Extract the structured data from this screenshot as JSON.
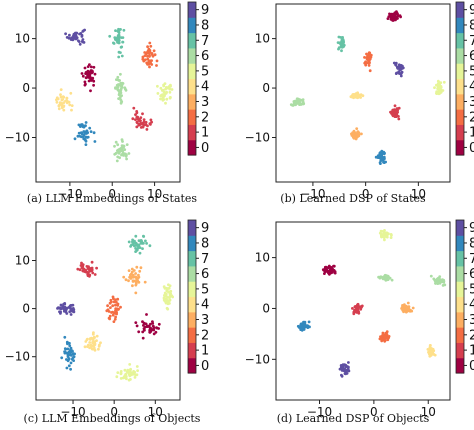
{
  "figure": {
    "captions": [
      "(a) LLM Embeddings of States",
      "(b) Learned DSP of States",
      "(c) LLM Embeddings of Objects",
      "(d) Learned DSP of Objects"
    ]
  },
  "colormap": {
    "name": "Spectral",
    "class_colors": [
      "#9e0142",
      "#d53e4f",
      "#f46d43",
      "#fdae61",
      "#fee08b",
      "#e6f598",
      "#abdda4",
      "#66c2a5",
      "#3288bd",
      "#5e4fa2"
    ]
  },
  "chart_data": [
    {
      "type": "scatter",
      "title": "",
      "xlabel": "",
      "ylabel": "",
      "xlim": [
        -18,
        16
      ],
      "ylim": [
        -19,
        17
      ],
      "xticks": [
        -10,
        0,
        10
      ],
      "yticks": [
        -10,
        0,
        10
      ],
      "grid": false,
      "colorbar": {
        "ticks": [
          0,
          1,
          2,
          3,
          4,
          5,
          6,
          7,
          8,
          9
        ],
        "placement": "right"
      },
      "clusters": [
        {
          "label": 9,
          "cx": -8.5,
          "cy": 10.5,
          "spread": [
            1.0,
            0.8
          ],
          "points": 40
        },
        {
          "label": 7,
          "cx": 1.5,
          "cy": 10.0,
          "spread": [
            0.6,
            1.3
          ],
          "points": 40
        },
        {
          "label": 2,
          "cx": 8.5,
          "cy": 6.5,
          "spread": [
            0.8,
            1.2
          ],
          "points": 40
        },
        {
          "label": 0,
          "cx": -5.5,
          "cy": 2.5,
          "spread": [
            0.8,
            1.0
          ],
          "points": 40
        },
        {
          "label": 6,
          "cx": 2.0,
          "cy": 0.0,
          "spread": [
            0.6,
            1.2
          ],
          "points": 40
        },
        {
          "label": 5,
          "cx": 12.5,
          "cy": -1.0,
          "spread": [
            1.0,
            0.9
          ],
          "points": 40
        },
        {
          "label": 4,
          "cx": -11.5,
          "cy": -3.0,
          "spread": [
            1.0,
            0.9
          ],
          "points": 40
        },
        {
          "label": 1,
          "cx": 7.0,
          "cy": -6.5,
          "spread": [
            1.0,
            0.9
          ],
          "points": 40
        },
        {
          "label": 8,
          "cx": -6.5,
          "cy": -9.0,
          "spread": [
            0.8,
            1.0
          ],
          "points": 40
        },
        {
          "label": 6,
          "cx": 2.0,
          "cy": -13.0,
          "spread": [
            0.9,
            1.0
          ],
          "points": 40
        }
      ]
    },
    {
      "type": "scatter",
      "title": "",
      "xlabel": "",
      "ylabel": "",
      "xlim": [
        -17,
        16
      ],
      "ylim": [
        -19,
        17
      ],
      "xticks": [
        -10,
        0,
        10
      ],
      "yticks": [
        -10,
        0,
        10
      ],
      "grid": false,
      "colorbar": {
        "ticks": [
          0,
          1,
          2,
          3,
          4,
          5,
          6,
          7,
          8,
          9
        ],
        "placement": "right"
      },
      "clusters": [
        {
          "label": 0,
          "cx": 5.5,
          "cy": 14.5,
          "spread": [
            0.6,
            0.4
          ],
          "points": 40
        },
        {
          "label": 7,
          "cx": -4.5,
          "cy": 9.0,
          "spread": [
            0.3,
            0.6
          ],
          "points": 40
        },
        {
          "label": 2,
          "cx": 0.5,
          "cy": 6.0,
          "spread": [
            0.3,
            0.7
          ],
          "points": 40
        },
        {
          "label": 9,
          "cx": 6.5,
          "cy": 4.0,
          "spread": [
            0.4,
            0.6
          ],
          "points": 40
        },
        {
          "label": 5,
          "cx": 14.0,
          "cy": 0.0,
          "spread": [
            0.3,
            0.7
          ],
          "points": 40
        },
        {
          "label": 4,
          "cx": -2.0,
          "cy": -1.5,
          "spread": [
            0.6,
            0.3
          ],
          "points": 40
        },
        {
          "label": 6,
          "cx": -13.0,
          "cy": -3.0,
          "spread": [
            0.6,
            0.4
          ],
          "points": 40
        },
        {
          "label": 1,
          "cx": 5.5,
          "cy": -5.0,
          "spread": [
            0.4,
            0.6
          ],
          "points": 40
        },
        {
          "label": 3,
          "cx": -2.0,
          "cy": -9.5,
          "spread": [
            0.5,
            0.4
          ],
          "points": 40
        },
        {
          "label": 8,
          "cx": 3.0,
          "cy": -14.0,
          "spread": [
            0.4,
            0.6
          ],
          "points": 40
        }
      ]
    },
    {
      "type": "scatter",
      "title": "",
      "xlabel": "",
      "ylabel": "",
      "xlim": [
        -19,
        16
      ],
      "ylim": [
        -19,
        18
      ],
      "xticks": [
        -10,
        0,
        10
      ],
      "yticks": [
        -10,
        0,
        10
      ],
      "grid": false,
      "colorbar": {
        "ticks": [
          0,
          1,
          2,
          3,
          4,
          5,
          6,
          7,
          8,
          9
        ],
        "placement": "right"
      },
      "clusters": [
        {
          "label": 7,
          "cx": 6.0,
          "cy": 13.5,
          "spread": [
            1.2,
            0.8
          ],
          "points": 40
        },
        {
          "label": 1,
          "cx": -6.5,
          "cy": 8.0,
          "spread": [
            1.0,
            0.8
          ],
          "points": 40
        },
        {
          "label": 3,
          "cx": 5.0,
          "cy": 6.5,
          "spread": [
            1.0,
            1.0
          ],
          "points": 40
        },
        {
          "label": 5,
          "cx": 13.0,
          "cy": 2.5,
          "spread": [
            0.7,
            1.2
          ],
          "points": 40
        },
        {
          "label": 9,
          "cx": -11.5,
          "cy": 0.0,
          "spread": [
            1.2,
            0.6
          ],
          "points": 40
        },
        {
          "label": 2,
          "cx": 0.0,
          "cy": 0.0,
          "spread": [
            0.8,
            1.4
          ],
          "points": 40
        },
        {
          "label": 0,
          "cx": 8.5,
          "cy": -4.0,
          "spread": [
            1.2,
            0.8
          ],
          "points": 40
        },
        {
          "label": 4,
          "cx": -5.0,
          "cy": -7.0,
          "spread": [
            1.0,
            1.0
          ],
          "points": 40
        },
        {
          "label": 8,
          "cx": -11.0,
          "cy": -9.5,
          "spread": [
            0.8,
            1.4
          ],
          "points": 40
        },
        {
          "label": 5,
          "cx": 3.5,
          "cy": -13.5,
          "spread": [
            1.2,
            0.6
          ],
          "points": 40
        }
      ]
    },
    {
      "type": "scatter",
      "title": "",
      "xlabel": "",
      "ylabel": "",
      "xlim": [
        -18,
        14
      ],
      "ylim": [
        -18,
        17
      ],
      "xticks": [
        -10,
        0,
        10
      ],
      "yticks": [
        -10,
        0,
        10
      ],
      "grid": false,
      "colorbar": {
        "ticks": [
          0,
          1,
          2,
          3,
          4,
          5,
          6,
          7,
          8,
          9
        ],
        "placement": "right"
      },
      "clusters": [
        {
          "label": 5,
          "cx": 2.0,
          "cy": 14.5,
          "spread": [
            0.5,
            0.4
          ],
          "points": 40
        },
        {
          "label": 0,
          "cx": -8.0,
          "cy": 7.5,
          "spread": [
            0.6,
            0.5
          ],
          "points": 40
        },
        {
          "label": 6,
          "cx": 2.0,
          "cy": 6.0,
          "spread": [
            0.6,
            0.3
          ],
          "points": 40
        },
        {
          "label": 6,
          "cx": 12.0,
          "cy": 5.5,
          "spread": [
            0.5,
            0.4
          ],
          "points": 40
        },
        {
          "label": 1,
          "cx": -3.0,
          "cy": 0.0,
          "spread": [
            0.4,
            0.5
          ],
          "points": 40
        },
        {
          "label": 3,
          "cx": 6.0,
          "cy": 0.0,
          "spread": [
            0.6,
            0.4
          ],
          "points": 40
        },
        {
          "label": 8,
          "cx": -13.0,
          "cy": -3.5,
          "spread": [
            0.6,
            0.4
          ],
          "points": 40
        },
        {
          "label": 2,
          "cx": 2.0,
          "cy": -5.5,
          "spread": [
            0.4,
            0.5
          ],
          "points": 40
        },
        {
          "label": 4,
          "cx": 10.5,
          "cy": -8.5,
          "spread": [
            0.3,
            0.6
          ],
          "points": 40
        },
        {
          "label": 9,
          "cx": -5.5,
          "cy": -12.0,
          "spread": [
            0.4,
            0.6
          ],
          "points": 40
        }
      ]
    }
  ]
}
